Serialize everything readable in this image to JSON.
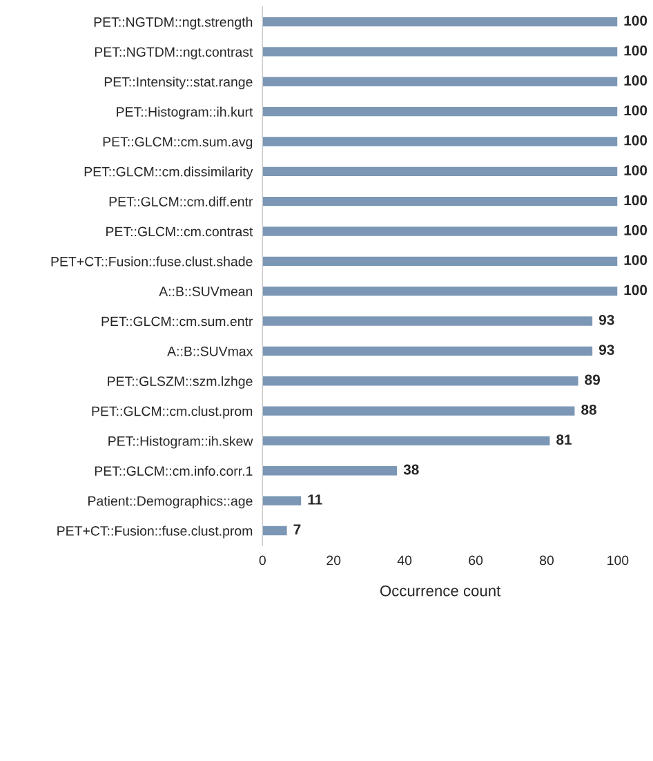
{
  "chart_data": {
    "type": "bar",
    "orientation": "horizontal",
    "xlabel": "Occurrence count",
    "categories": [
      "PET::NGTDM::ngt.strength",
      "PET::NGTDM::ngt.contrast",
      "PET::Intensity::stat.range",
      "PET::Histogram::ih.kurt",
      "PET::GLCM::cm.sum.avg",
      "PET::GLCM::cm.dissimilarity",
      "PET::GLCM::cm.diff.entr",
      "PET::GLCM::cm.contrast",
      "PET+CT::Fusion::fuse.clust.shade",
      "A::B::SUVmean",
      "PET::GLCM::cm.sum.entr",
      "A::B::SUVmax",
      "PET::GLSZM::szm.lzhge",
      "PET::GLCM::cm.clust.prom",
      "PET::Histogram::ih.skew",
      "PET::GLCM::cm.info.corr.1",
      "Patient::Demographics::age",
      "PET+CT::Fusion::fuse.clust.prom"
    ],
    "values": [
      100,
      100,
      100,
      100,
      100,
      100,
      100,
      100,
      100,
      100,
      93,
      93,
      89,
      88,
      81,
      38,
      11,
      7
    ],
    "color": "#7b97b5",
    "xlim": [
      0,
      100
    ],
    "xticks": [
      0,
      20,
      40,
      60,
      80,
      100
    ],
    "data_labels": true,
    "grid": false,
    "legend": false
  }
}
